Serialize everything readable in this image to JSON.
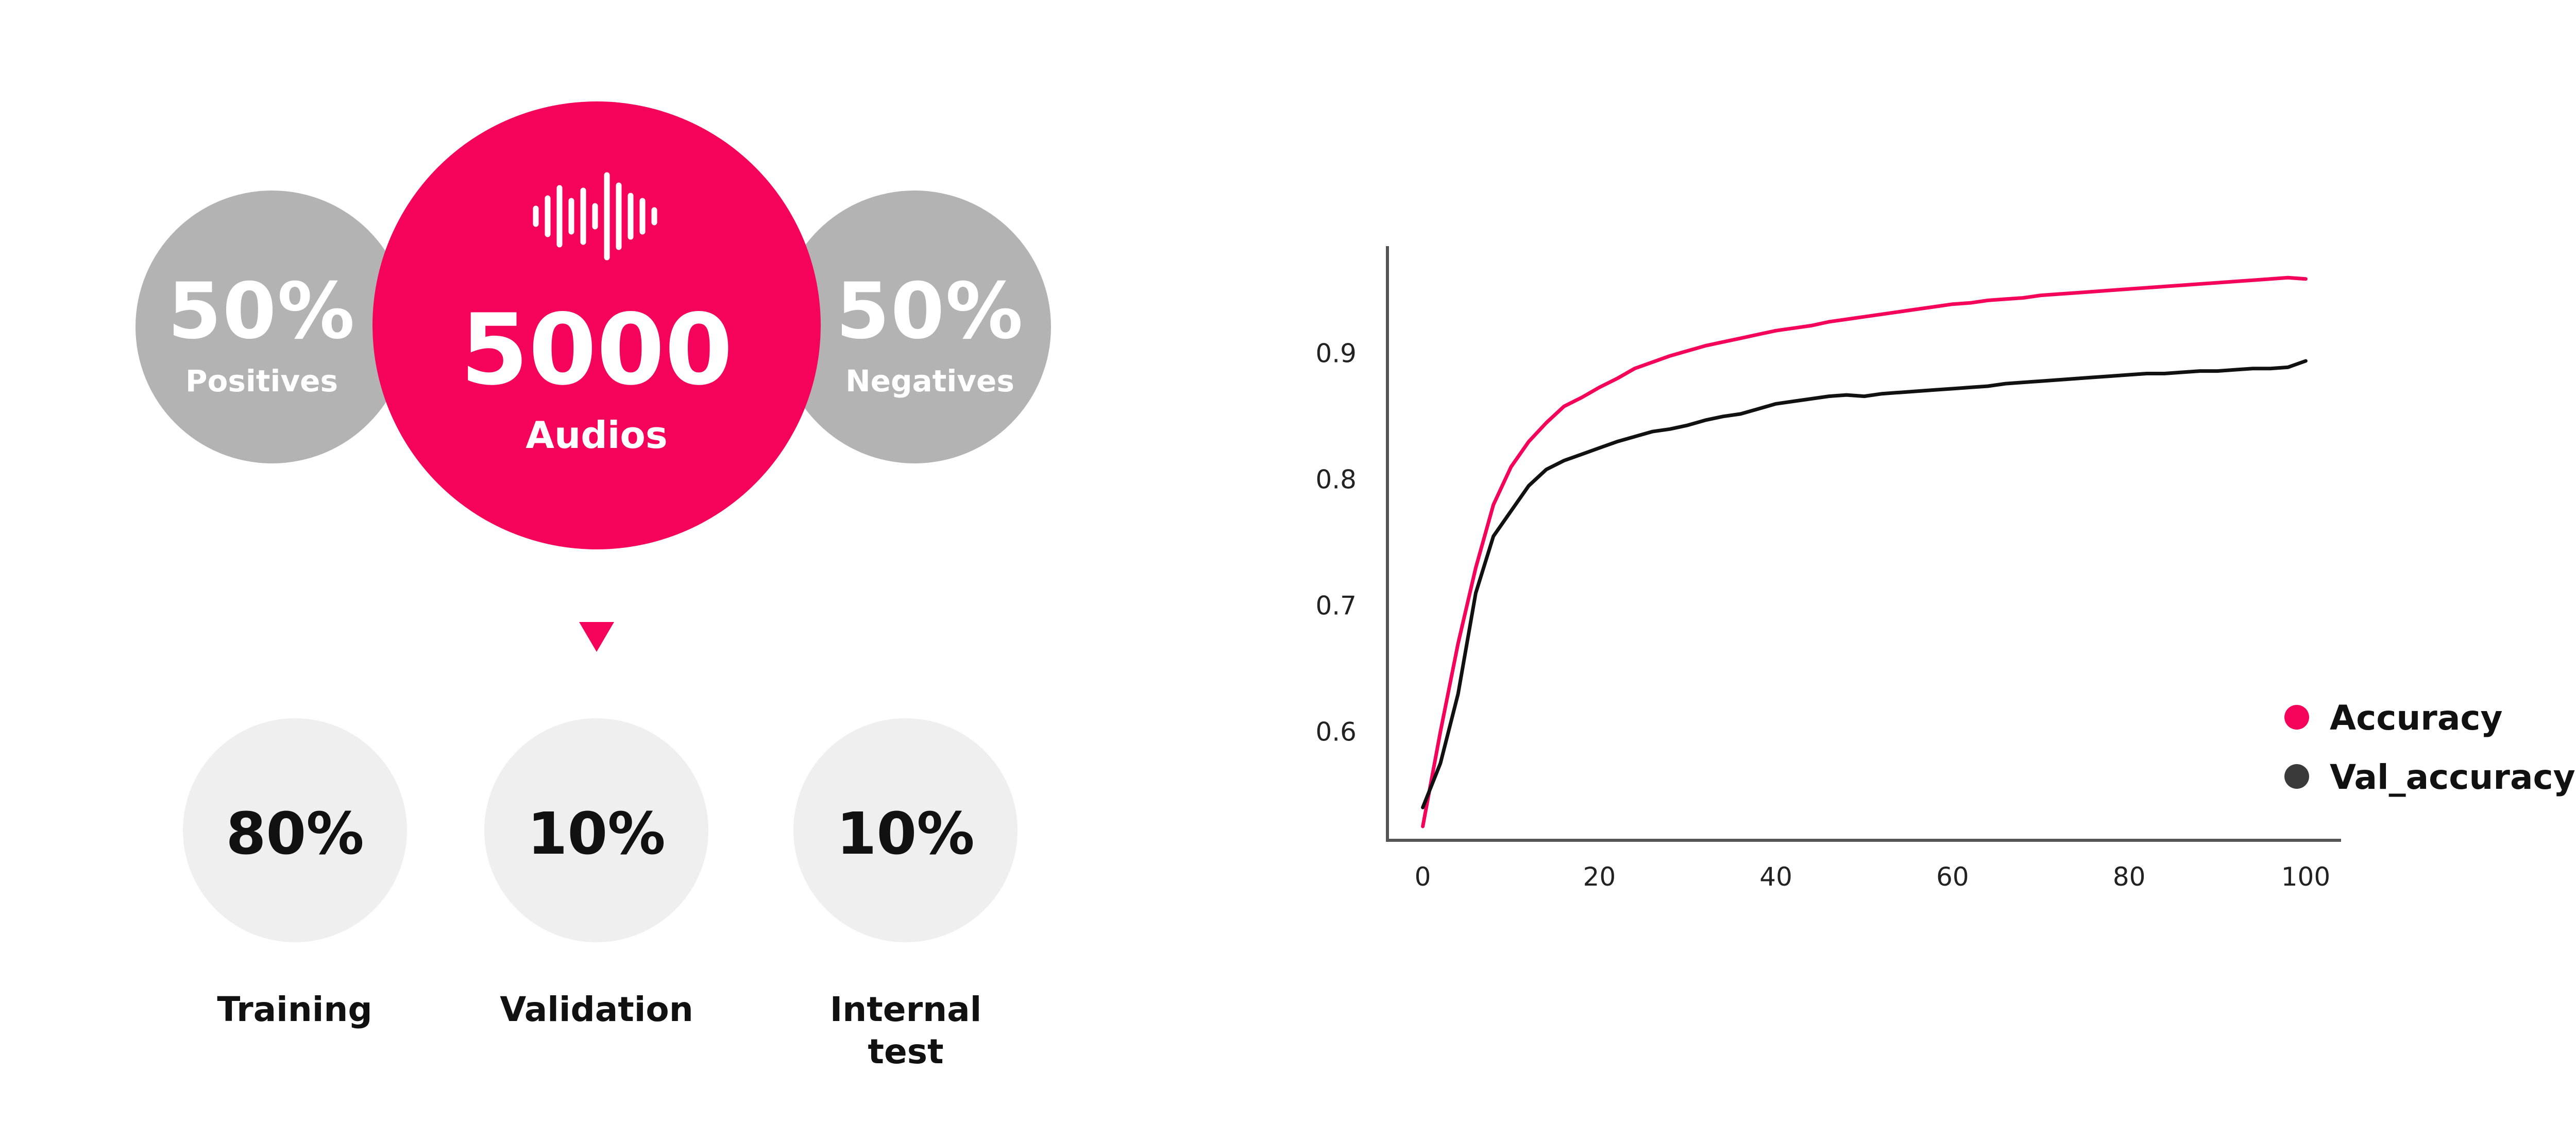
{
  "dataset": {
    "total_value": "5000",
    "total_label": "Audios",
    "positives_value": "50%",
    "positives_label": "Positives",
    "negatives_value": "50%",
    "negatives_label": "Negatives",
    "icon": "sound-wave-icon",
    "arrow_icon": "down-triangle-icon",
    "colors": {
      "accent": "#f5035b",
      "grey": "#b3b3b3",
      "light": "#efefef"
    }
  },
  "split": [
    {
      "value": "80%",
      "label": "Training"
    },
    {
      "value": "10%",
      "label": "Validation"
    },
    {
      "value": "10%",
      "label": "Internal test"
    }
  ],
  "chart_data": {
    "type": "line",
    "title": "",
    "xlabel": "",
    "ylabel": "",
    "xlim": [
      -4,
      104
    ],
    "ylim": [
      0.514,
      0.985
    ],
    "xticks": [
      0,
      20,
      40,
      60,
      80,
      100
    ],
    "xtick_labels": [
      "0",
      "20",
      "40",
      "60",
      "80",
      "100"
    ],
    "yticks": [
      0.6,
      0.7,
      0.8,
      0.9
    ],
    "ytick_labels": [
      "0.6",
      "0.7",
      "0.8",
      "0.9"
    ],
    "grid": false,
    "legend": "right",
    "series": [
      {
        "name": "Accuracy",
        "color": "#f5035b",
        "x": [
          0,
          2,
          4,
          6,
          8,
          10,
          12,
          14,
          16,
          18,
          20,
          22,
          24,
          26,
          28,
          30,
          32,
          34,
          36,
          38,
          40,
          42,
          44,
          46,
          48,
          50,
          52,
          54,
          56,
          58,
          60,
          62,
          64,
          66,
          68,
          70,
          72,
          74,
          76,
          78,
          80,
          82,
          84,
          86,
          88,
          90,
          92,
          94,
          96,
          98,
          100
        ],
        "values": [
          0.525,
          0.6,
          0.67,
          0.73,
          0.78,
          0.81,
          0.83,
          0.845,
          0.858,
          0.865,
          0.873,
          0.88,
          0.888,
          0.893,
          0.898,
          0.902,
          0.906,
          0.909,
          0.912,
          0.915,
          0.918,
          0.92,
          0.922,
          0.925,
          0.927,
          0.929,
          0.931,
          0.933,
          0.935,
          0.937,
          0.939,
          0.94,
          0.942,
          0.943,
          0.944,
          0.946,
          0.947,
          0.948,
          0.949,
          0.95,
          0.951,
          0.952,
          0.953,
          0.954,
          0.955,
          0.956,
          0.957,
          0.958,
          0.959,
          0.96,
          0.959
        ]
      },
      {
        "name": "Val_accuracy",
        "color": "#111111",
        "x": [
          0,
          2,
          4,
          6,
          8,
          10,
          12,
          14,
          16,
          18,
          20,
          22,
          24,
          26,
          28,
          30,
          32,
          34,
          36,
          38,
          40,
          42,
          44,
          46,
          48,
          50,
          52,
          54,
          56,
          58,
          60,
          62,
          64,
          66,
          68,
          70,
          72,
          74,
          76,
          78,
          80,
          82,
          84,
          86,
          88,
          90,
          92,
          94,
          96,
          98,
          100
        ],
        "values": [
          0.54,
          0.575,
          0.63,
          0.71,
          0.755,
          0.775,
          0.795,
          0.808,
          0.815,
          0.82,
          0.825,
          0.83,
          0.834,
          0.838,
          0.84,
          0.843,
          0.847,
          0.85,
          0.852,
          0.856,
          0.86,
          0.862,
          0.864,
          0.866,
          0.867,
          0.866,
          0.868,
          0.869,
          0.87,
          0.871,
          0.872,
          0.873,
          0.874,
          0.876,
          0.877,
          0.878,
          0.879,
          0.88,
          0.881,
          0.882,
          0.883,
          0.884,
          0.884,
          0.885,
          0.886,
          0.886,
          0.887,
          0.888,
          0.888,
          0.889,
          0.894
        ]
      }
    ]
  }
}
